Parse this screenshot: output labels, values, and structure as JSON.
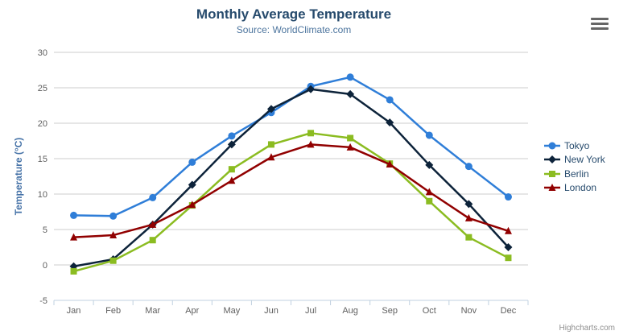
{
  "chart_data": {
    "type": "line",
    "title": "Monthly Average Temperature",
    "subtitle": "Source: WorldClimate.com",
    "categories": [
      "Jan",
      "Feb",
      "Mar",
      "Apr",
      "May",
      "Jun",
      "Jul",
      "Aug",
      "Sep",
      "Oct",
      "Nov",
      "Dec"
    ],
    "xlabel": "",
    "ylabel": "Temperature (°C)",
    "ylim": [
      -5,
      30
    ],
    "ytick_interval": 5,
    "ytick_labels": [
      "-5",
      "0",
      "5",
      "10",
      "15",
      "20",
      "25",
      "30"
    ],
    "grid": true,
    "legend_position": "right",
    "series": [
      {
        "name": "Tokyo",
        "color": "#2f7ed8",
        "marker": "circle",
        "values": [
          7.0,
          6.9,
          9.5,
          14.5,
          18.2,
          21.5,
          25.2,
          26.5,
          23.3,
          18.3,
          13.9,
          9.6
        ]
      },
      {
        "name": "New York",
        "color": "#0d233a",
        "marker": "diamond",
        "values": [
          -0.2,
          0.8,
          5.7,
          11.3,
          17.0,
          22.0,
          24.8,
          24.1,
          20.1,
          14.1,
          8.6,
          2.5
        ]
      },
      {
        "name": "Berlin",
        "color": "#8bbc21",
        "marker": "square",
        "values": [
          -0.9,
          0.6,
          3.5,
          8.4,
          13.5,
          17.0,
          18.6,
          17.9,
          14.3,
          9.0,
          3.9,
          1.0
        ]
      },
      {
        "name": "London",
        "color": "#910000",
        "marker": "triangle",
        "values": [
          3.9,
          4.2,
          5.7,
          8.5,
          11.9,
          15.2,
          17.0,
          16.6,
          14.2,
          10.3,
          6.6,
          4.8
        ]
      }
    ]
  },
  "credit": {
    "label": "Highcharts.com"
  },
  "icons": {
    "context_menu": "hamburger-icon"
  },
  "colors": {
    "title": "#274b6d",
    "subtitle": "#4d759e",
    "axis_label": "#606060",
    "y_axis_title": "#4572a7",
    "gridline": "#cccccc",
    "axis_line": "#c0d0e0",
    "legend_text": "#274b6d",
    "credit_text": "#909090",
    "menu_icon": "#666666"
  }
}
